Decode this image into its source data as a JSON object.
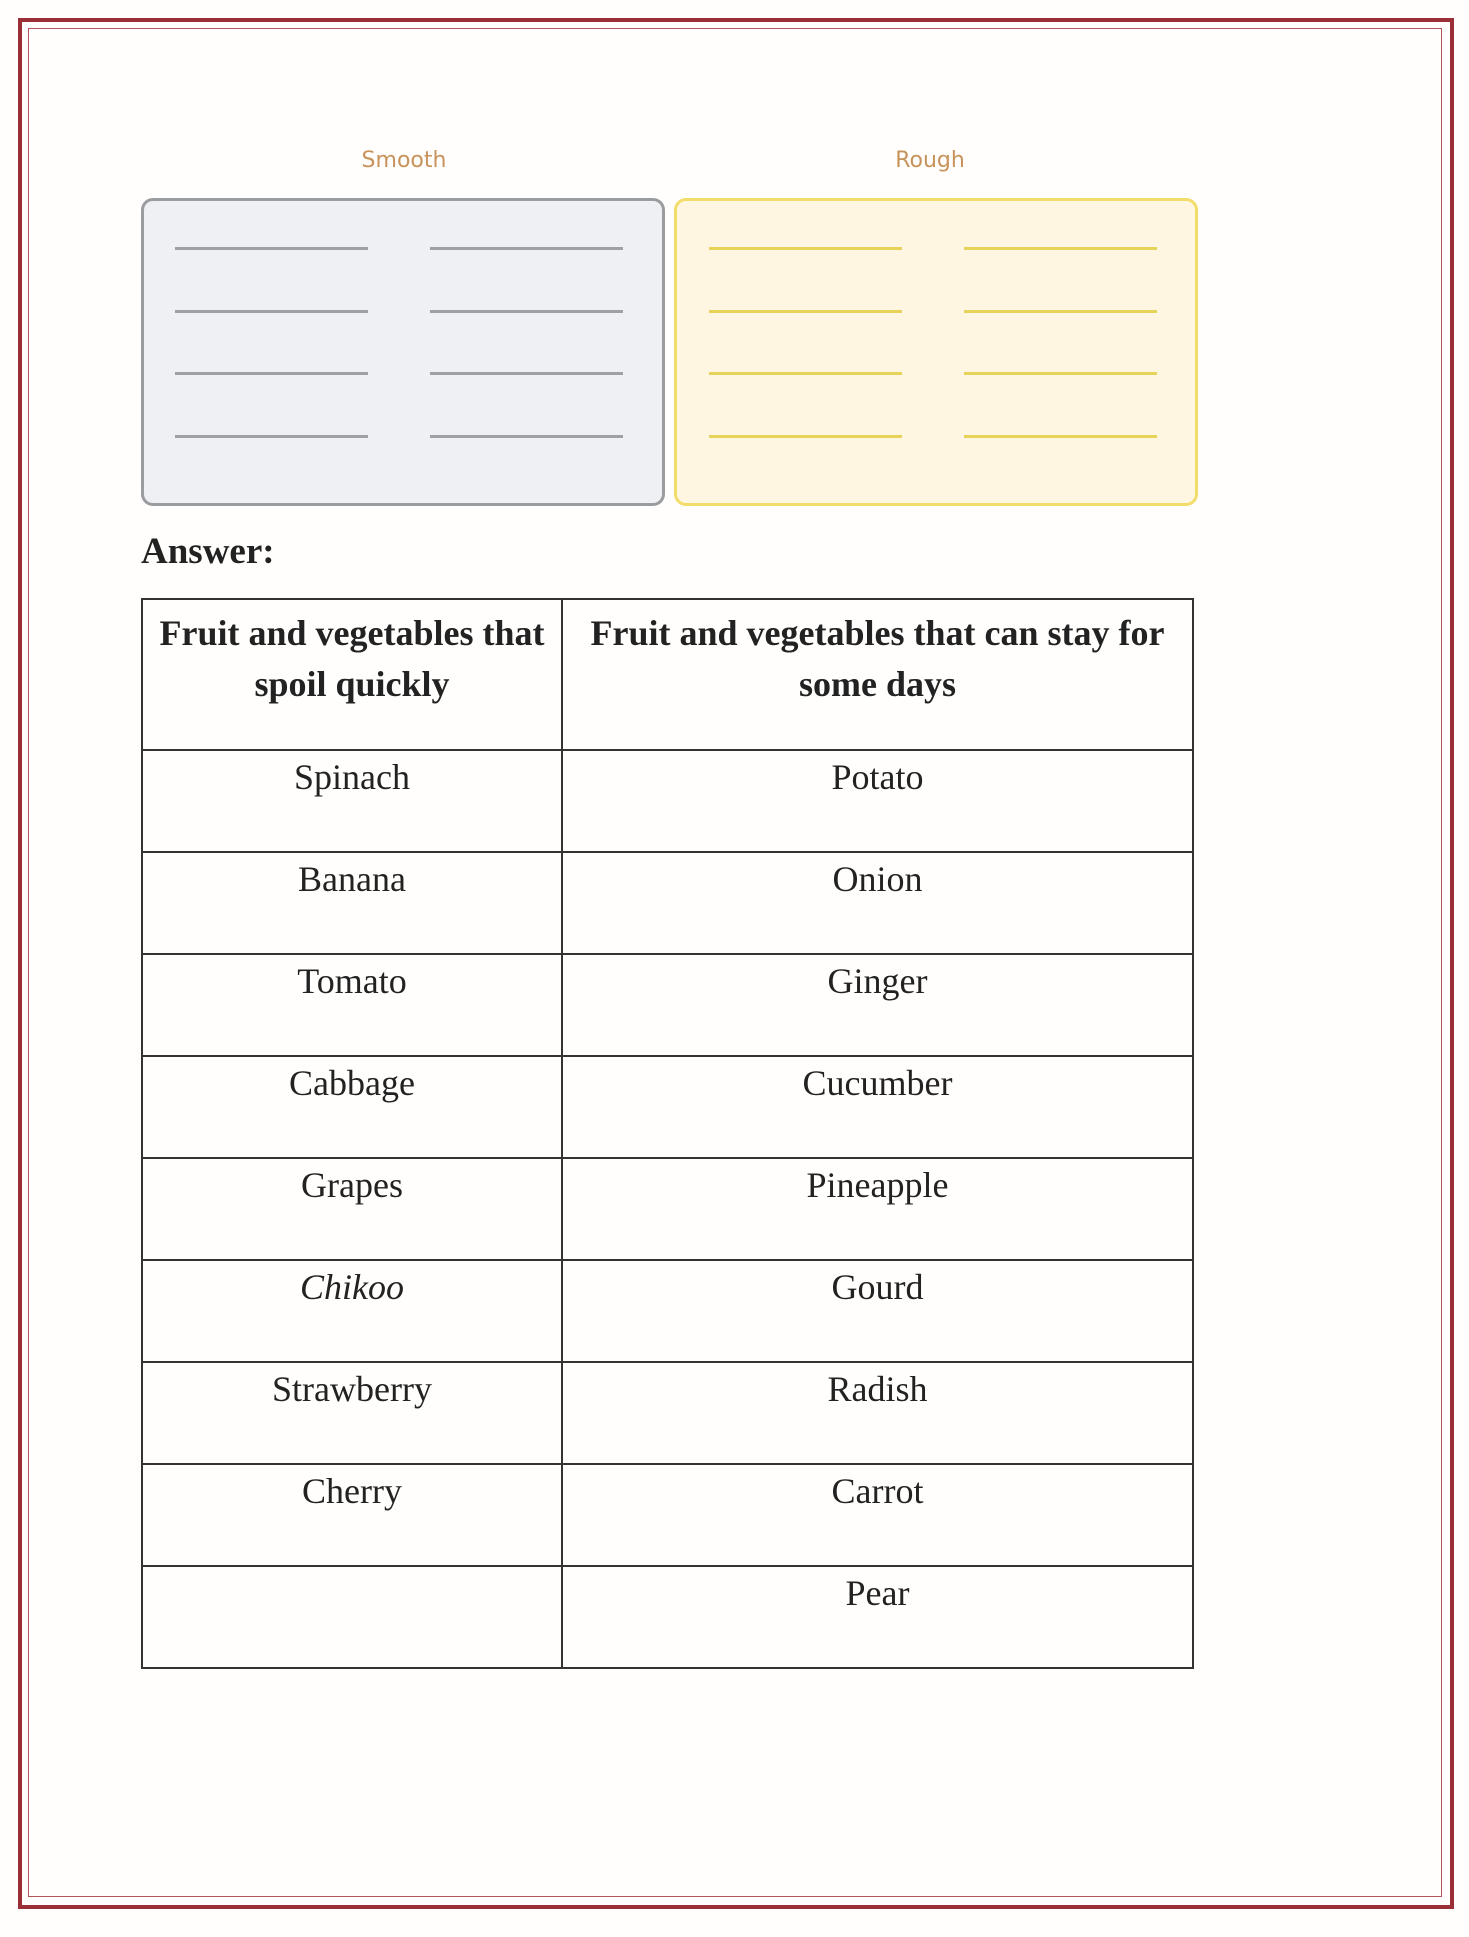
{
  "sorting": {
    "smooth_label": "Smooth",
    "rough_label": "Rough"
  },
  "answer_label": "Answer:",
  "table": {
    "headers": [
      "Fruit and vegetables that spoil quickly",
      "Fruit and vegetables that can stay for some days"
    ],
    "rows": [
      {
        "quick": "Spinach",
        "stay": "Potato"
      },
      {
        "quick": "Banana",
        "stay": "Onion"
      },
      {
        "quick": "Tomato",
        "stay": "Ginger"
      },
      {
        "quick": "Cabbage",
        "stay": "Cucumber"
      },
      {
        "quick": "Grapes",
        "stay": "Pineapple"
      },
      {
        "quick": "Chikoo",
        "stay": "Gourd",
        "quick_italic": true
      },
      {
        "quick": "Strawberry",
        "stay": "Radish"
      },
      {
        "quick": "Cherry",
        "stay": "Carrot"
      },
      {
        "quick": "",
        "stay": "Pear"
      }
    ]
  },
  "colors": {
    "border": "#9b2f37",
    "smooth_box": "#eef0f3",
    "rough_box": "#fff6e2",
    "label": "#c8935a"
  }
}
